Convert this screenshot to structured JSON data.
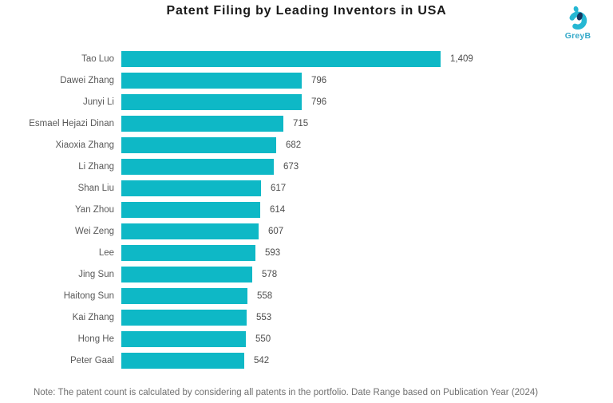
{
  "title": "Patent Filing by Leading Inventors in USA",
  "logo": {
    "text": "GreyB"
  },
  "note": "Note: The patent count is calculated by considering all patents in the portfolio. Date Range based on Publication Year (2024)",
  "colors": {
    "bar": "#0eb8c6",
    "logo_teal": "#25b7d3",
    "logo_navy": "#16355f",
    "label_gray": "#595959",
    "title_dark": "#1a1a1a"
  },
  "chart_data": {
    "type": "bar",
    "orientation": "horizontal",
    "title": "Patent Filing by Leading Inventors in USA",
    "xlabel": "",
    "ylabel": "",
    "xlim": [
      0,
      1409
    ],
    "grid": false,
    "legend": false,
    "categories": [
      "Tao Luo",
      "Dawei Zhang",
      "Junyi Li",
      "Esmael Hejazi Dinan",
      "Xiaoxia Zhang",
      "Li Zhang",
      "Shan Liu",
      "Yan Zhou",
      "Wei Zeng",
      "Lee",
      "Jing Sun",
      "Haitong Sun",
      "Kai Zhang",
      "Hong He",
      "Peter Gaal"
    ],
    "values": [
      1409,
      796,
      796,
      715,
      682,
      673,
      617,
      614,
      607,
      593,
      578,
      558,
      553,
      550,
      542
    ],
    "value_labels": [
      "1,409",
      "796",
      "796",
      "715",
      "682",
      "673",
      "617",
      "614",
      "607",
      "593",
      "578",
      "558",
      "553",
      "550",
      "542"
    ]
  }
}
